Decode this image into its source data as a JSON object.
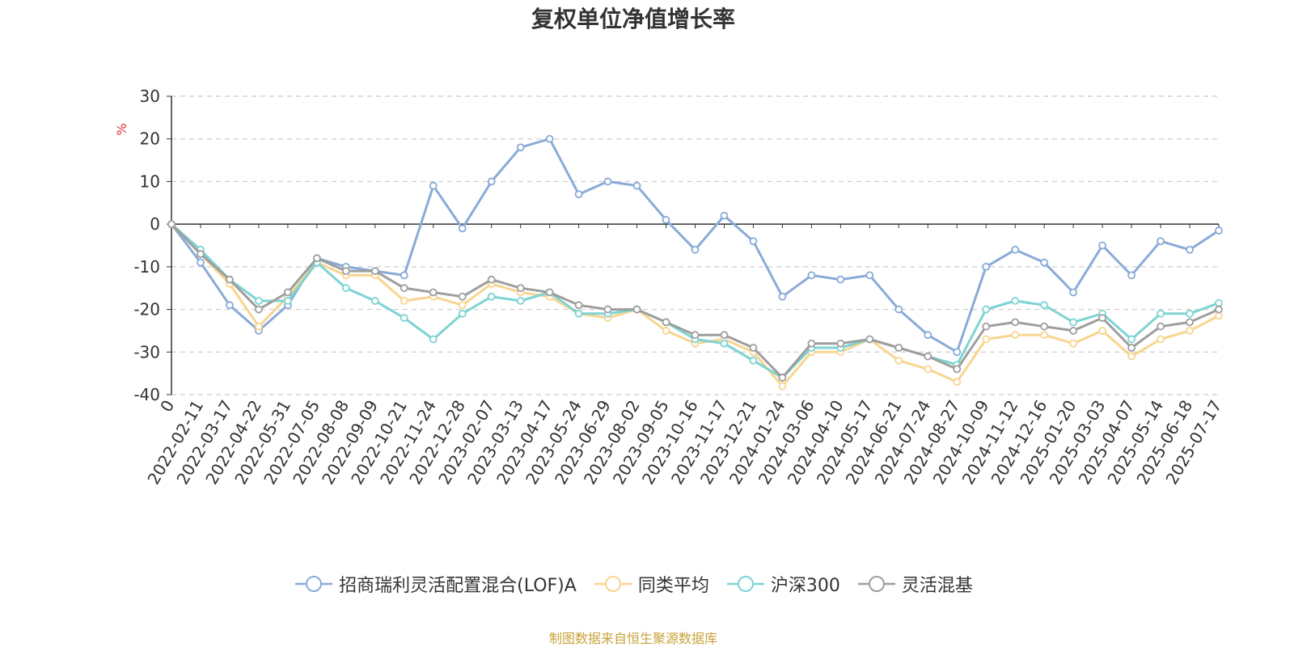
{
  "chart_data": {
    "type": "line",
    "title": "复权单位净值增长率",
    "ylabel": "%",
    "ylim": [
      -40,
      30
    ],
    "yticks": [
      30,
      20,
      10,
      0,
      -10,
      -20,
      -30,
      -40
    ],
    "grid": true,
    "legend_position": "bottom",
    "source": "制图数据来自恒生聚源数据库",
    "x": [
      "0",
      "2022-02-11",
      "2022-03-17",
      "2022-04-22",
      "2022-05-31",
      "2022-07-05",
      "2022-08-08",
      "2022-09-09",
      "2022-10-21",
      "2022-11-24",
      "2022-12-28",
      "2023-02-07",
      "2023-03-13",
      "2023-04-17",
      "2023-05-24",
      "2023-06-29",
      "2023-08-02",
      "2023-09-05",
      "2023-10-16",
      "2023-11-17",
      "2023-12-21",
      "2024-01-24",
      "2024-03-06",
      "2024-04-10",
      "2024-05-17",
      "2024-06-21",
      "2024-07-24",
      "2024-08-27",
      "2024-10-09",
      "2024-11-12",
      "2024-12-16",
      "2025-01-20",
      "2025-03-03",
      "2025-04-07",
      "2025-05-14",
      "2025-06-18",
      "2025-07-17"
    ],
    "series": [
      {
        "name": "招商瑞利灵活配置混合(LOF)A",
        "color": "#8aaad8",
        "values": [
          0,
          -9,
          -19,
          -25,
          -19,
          -8,
          -10,
          -11,
          -12,
          9,
          -1,
          10,
          18,
          20,
          7,
          10,
          9,
          1,
          -6,
          2,
          -4,
          -17,
          -12,
          -13,
          -12,
          -20,
          -26,
          -30,
          -10,
          -6,
          -9,
          -16,
          -5,
          -12,
          -4,
          -6,
          -1.5
        ]
      },
      {
        "name": "同类平均",
        "color": "#f8d58f",
        "values": [
          0,
          -7,
          -14,
          -24,
          -17,
          -9,
          -12,
          -12,
          -18,
          -17,
          -19,
          -14,
          -16,
          -17,
          -21,
          -22,
          -20,
          -25,
          -28,
          -27,
          -30,
          -38,
          -30,
          -30,
          -27,
          -32,
          -34,
          -37,
          -27,
          -26,
          -26,
          -28,
          -25,
          -31,
          -27,
          -25,
          -21.5
        ]
      },
      {
        "name": "沪深300",
        "color": "#7ed3d3",
        "values": [
          0,
          -6,
          -13,
          -18,
          -18,
          -9,
          -15,
          -18,
          -22,
          -27,
          -21,
          -17,
          -18,
          -16,
          -21,
          -21,
          -20,
          -23,
          -27,
          -28,
          -32,
          -36,
          -29,
          -29,
          -27,
          -29,
          -31,
          -33,
          -20,
          -18,
          -19,
          -23,
          -21,
          -27,
          -21,
          -21,
          -18.5
        ]
      },
      {
        "name": "灵活混基",
        "color": "#9e9e9e",
        "values": [
          0,
          -7,
          -13,
          -20,
          -16,
          -8,
          -11,
          -11,
          -15,
          -16,
          -17,
          -13,
          -15,
          -16,
          -19,
          -20,
          -20,
          -23,
          -26,
          -26,
          -29,
          -36,
          -28,
          -28,
          -27,
          -29,
          -31,
          -34,
          -24,
          -23,
          -24,
          -25,
          -22,
          -29,
          -24,
          -23,
          -20
        ]
      }
    ]
  }
}
